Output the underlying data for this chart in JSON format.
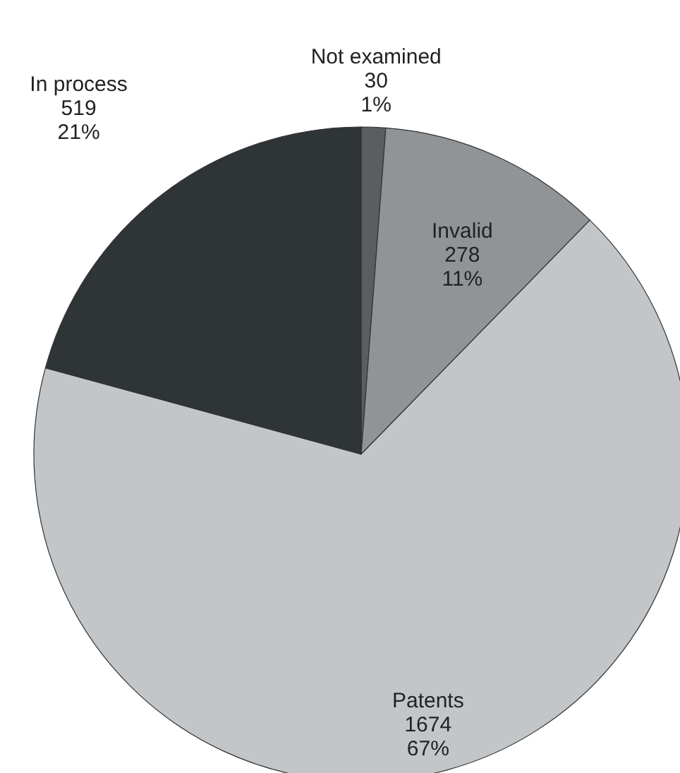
{
  "chart_data": {
    "type": "pie",
    "categories": [
      "Not examined",
      "Invalid",
      "Patents",
      "In process"
    ],
    "values": [
      30,
      278,
      1674,
      519
    ],
    "colors": [
      "#5a5e60",
      "#909496",
      "#c3c6c8",
      "#2f3436"
    ],
    "value_labels": [
      "30\n1%",
      "278\n11%",
      "1674\n67%",
      "519\n21%"
    ]
  }
}
